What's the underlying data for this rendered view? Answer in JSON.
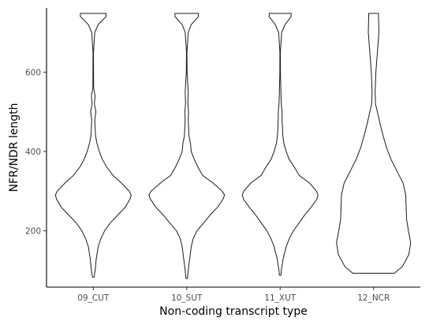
{
  "chart_data": {
    "type": "violin",
    "title": "",
    "xlabel": "Non-coding transcript type",
    "ylabel": "NFR/NDR length",
    "ylim": [
      58,
      762
    ],
    "yticks": [
      200,
      400,
      600
    ],
    "grid": false,
    "legend": "none",
    "categories": [
      "09_CUT",
      "10_SUT",
      "11_XUT",
      "12_NCR"
    ],
    "series": [
      {
        "category": "09_CUT",
        "profile": [
          [
            83,
            0.02
          ],
          [
            100,
            0.05
          ],
          [
            130,
            0.08
          ],
          [
            160,
            0.13
          ],
          [
            180,
            0.2
          ],
          [
            200,
            0.3
          ],
          [
            220,
            0.45
          ],
          [
            240,
            0.65
          ],
          [
            260,
            0.85
          ],
          [
            280,
            0.97
          ],
          [
            290,
            1.0
          ],
          [
            300,
            0.95
          ],
          [
            320,
            0.75
          ],
          [
            340,
            0.52
          ],
          [
            360,
            0.36
          ],
          [
            380,
            0.24
          ],
          [
            400,
            0.16
          ],
          [
            420,
            0.1
          ],
          [
            440,
            0.06
          ],
          [
            460,
            0.05
          ],
          [
            480,
            0.04
          ],
          [
            500,
            0.07
          ],
          [
            520,
            0.03
          ],
          [
            540,
            0.05
          ],
          [
            560,
            0.01
          ],
          [
            600,
            0.008
          ],
          [
            650,
            0.006
          ],
          [
            700,
            0.04
          ],
          [
            720,
            0.13
          ],
          [
            740,
            0.34
          ],
          [
            748,
            0.34
          ]
        ]
      },
      {
        "category": "10_SUT",
        "profile": [
          [
            80,
            0.02
          ],
          [
            100,
            0.04
          ],
          [
            130,
            0.08
          ],
          [
            160,
            0.12
          ],
          [
            180,
            0.17
          ],
          [
            200,
            0.27
          ],
          [
            220,
            0.45
          ],
          [
            240,
            0.62
          ],
          [
            260,
            0.82
          ],
          [
            280,
            0.96
          ],
          [
            290,
            1.0
          ],
          [
            300,
            0.94
          ],
          [
            320,
            0.7
          ],
          [
            340,
            0.42
          ],
          [
            360,
            0.3
          ],
          [
            380,
            0.2
          ],
          [
            400,
            0.12
          ],
          [
            420,
            0.1
          ],
          [
            440,
            0.06
          ],
          [
            460,
            0.05
          ],
          [
            480,
            0.04
          ],
          [
            500,
            0.05
          ],
          [
            520,
            0.03
          ],
          [
            550,
            0.04
          ],
          [
            600,
            0.01
          ],
          [
            650,
            0.006
          ],
          [
            700,
            0.04
          ],
          [
            720,
            0.12
          ],
          [
            740,
            0.31
          ],
          [
            748,
            0.31
          ]
        ]
      },
      {
        "category": "11_XUT",
        "profile": [
          [
            88,
            0.02
          ],
          [
            100,
            0.03
          ],
          [
            130,
            0.08
          ],
          [
            160,
            0.16
          ],
          [
            180,
            0.24
          ],
          [
            200,
            0.35
          ],
          [
            220,
            0.5
          ],
          [
            240,
            0.65
          ],
          [
            260,
            0.82
          ],
          [
            280,
            0.97
          ],
          [
            290,
            1.0
          ],
          [
            300,
            0.96
          ],
          [
            320,
            0.78
          ],
          [
            340,
            0.5
          ],
          [
            360,
            0.38
          ],
          [
            380,
            0.24
          ],
          [
            400,
            0.16
          ],
          [
            420,
            0.1
          ],
          [
            440,
            0.07
          ],
          [
            460,
            0.06
          ],
          [
            480,
            0.05
          ],
          [
            500,
            0.05
          ],
          [
            520,
            0.03
          ],
          [
            550,
            0.02
          ],
          [
            600,
            0.008
          ],
          [
            650,
            0.006
          ],
          [
            700,
            0.04
          ],
          [
            720,
            0.13
          ],
          [
            740,
            0.29
          ],
          [
            748,
            0.29
          ]
        ]
      },
      {
        "category": "12_NCR",
        "profile": [
          [
            93,
            0.55
          ],
          [
            110,
            0.76
          ],
          [
            140,
            0.93
          ],
          [
            170,
            0.98
          ],
          [
            200,
            0.92
          ],
          [
            230,
            0.87
          ],
          [
            260,
            0.86
          ],
          [
            290,
            0.85
          ],
          [
            320,
            0.78
          ],
          [
            350,
            0.62
          ],
          [
            380,
            0.46
          ],
          [
            410,
            0.34
          ],
          [
            440,
            0.25
          ],
          [
            470,
            0.17
          ],
          [
            500,
            0.1
          ],
          [
            520,
            0.05
          ],
          [
            550,
            0.04
          ],
          [
            600,
            0.06
          ],
          [
            650,
            0.1
          ],
          [
            700,
            0.14
          ],
          [
            740,
            0.13
          ],
          [
            748,
            0.13
          ]
        ]
      }
    ]
  }
}
